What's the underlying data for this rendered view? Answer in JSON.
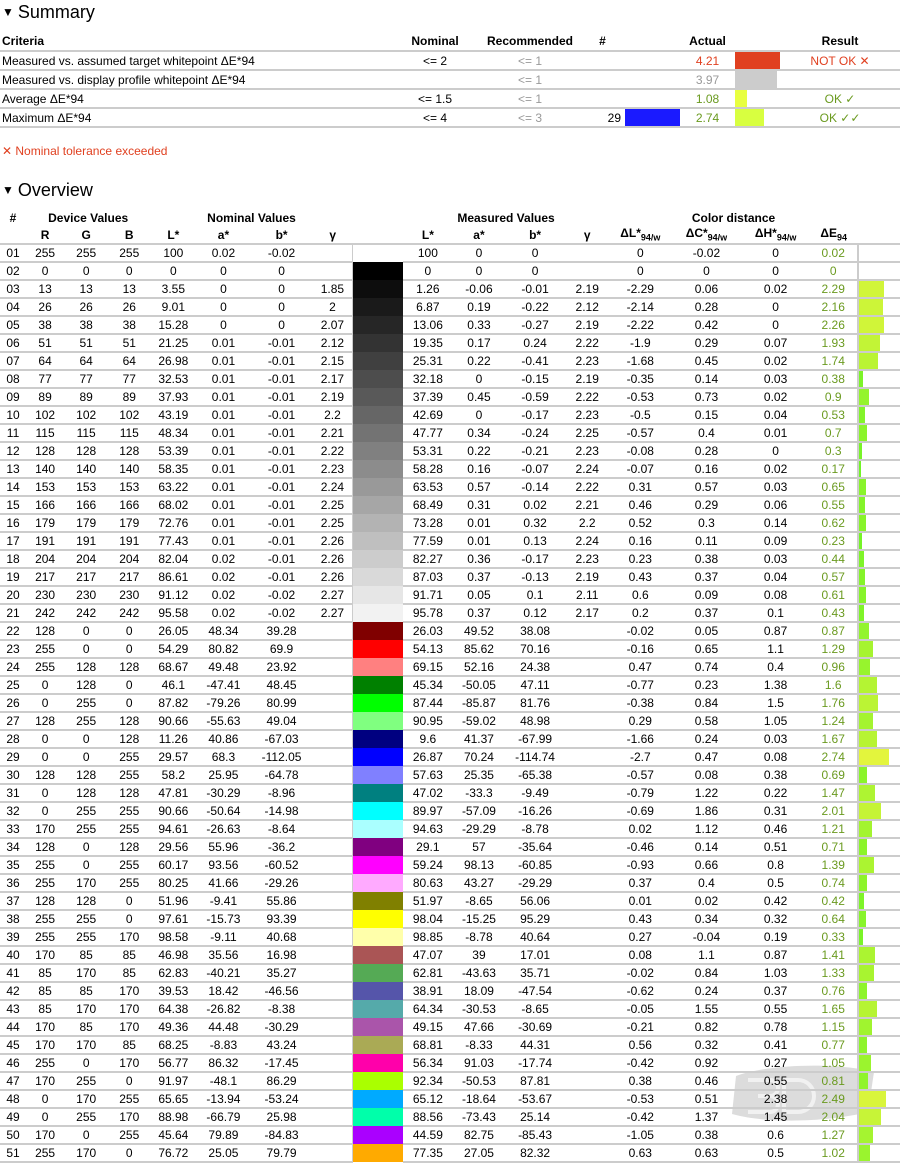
{
  "summary": {
    "title": "Summary",
    "headers": {
      "criteria": "Criteria",
      "nominal": "Nominal",
      "recommended": "Recommended",
      "num": "#",
      "actual": "Actual",
      "result": "Result"
    },
    "rows": [
      {
        "criteria": "Measured vs. assumed target whitepoint ΔE*94",
        "nominal": "<= 2",
        "recommended": "<= 1",
        "num": "",
        "num_color": "",
        "actual": "4.21",
        "actual_class": "red",
        "actual_color": "#e04020",
        "result": "NOT OK ✕",
        "result_class": "red"
      },
      {
        "criteria": "Measured vs. display profile whitepoint ΔE*94",
        "nominal": "",
        "recommended": "<= 1",
        "num": "",
        "num_color": "",
        "actual": "3.97",
        "actual_class": "gray",
        "actual_color": "#cccccc",
        "result": "",
        "result_class": ""
      },
      {
        "criteria": "Average ΔE*94",
        "nominal": "<= 1.5",
        "recommended": "<= 1",
        "num": "",
        "num_color": "",
        "actual": "1.08",
        "actual_class": "green",
        "actual_color": "#e8ff40",
        "result": "OK ✓",
        "result_class": "green"
      },
      {
        "criteria": "Maximum ΔE*94",
        "nominal": "<= 4",
        "recommended": "<= 3",
        "num": "29",
        "num_color": "#1a1aff",
        "actual": "2.74",
        "actual_class": "green",
        "actual_color": "#d8ff40",
        "result": "OK ✓✓",
        "result_class": "green"
      }
    ],
    "note": "✕ Nominal tolerance exceeded"
  },
  "overview": {
    "title": "Overview",
    "groups": {
      "num": "#",
      "device": "Device Values",
      "nominal": "Nominal Values",
      "measured": "Measured Values",
      "distance": "Color distance"
    },
    "columns": {
      "r": "R",
      "g": "G",
      "b": "B",
      "l": "L*",
      "a": "a*",
      "bb": "b*",
      "gamma": "γ",
      "dl": "ΔL*",
      "dc": "ΔC*",
      "dh": "ΔH*",
      "de": "ΔE",
      "sub_w": "94/w",
      "sub": "94"
    },
    "rows": [
      [
        "01",
        255,
        255,
        255,
        "100",
        "0.02",
        "-0.02",
        "",
        "100",
        "0",
        "0",
        "",
        "0",
        "-0.02",
        "0",
        "0.02"
      ],
      [
        "02",
        0,
        0,
        0,
        "0",
        "0",
        "0",
        "",
        "0",
        "0",
        "0",
        "",
        "0",
        "0",
        "0",
        "0"
      ],
      [
        "03",
        13,
        13,
        13,
        "3.55",
        "0",
        "0",
        "1.85",
        "1.26",
        "-0.06",
        "-0.01",
        "2.19",
        "-2.29",
        "0.06",
        "0.02",
        "2.29"
      ],
      [
        "04",
        26,
        26,
        26,
        "9.01",
        "0",
        "0",
        "2",
        "6.87",
        "0.19",
        "-0.22",
        "2.12",
        "-2.14",
        "0.28",
        "0",
        "2.16"
      ],
      [
        "05",
        38,
        38,
        38,
        "15.28",
        "0",
        "0",
        "2.07",
        "13.06",
        "0.33",
        "-0.27",
        "2.19",
        "-2.22",
        "0.42",
        "0",
        "2.26"
      ],
      [
        "06",
        51,
        51,
        51,
        "21.25",
        "0.01",
        "-0.01",
        "2.12",
        "19.35",
        "0.17",
        "0.24",
        "2.22",
        "-1.9",
        "0.29",
        "0.07",
        "1.93"
      ],
      [
        "07",
        64,
        64,
        64,
        "26.98",
        "0.01",
        "-0.01",
        "2.15",
        "25.31",
        "0.22",
        "-0.41",
        "2.23",
        "-1.68",
        "0.45",
        "0.02",
        "1.74"
      ],
      [
        "08",
        77,
        77,
        77,
        "32.53",
        "0.01",
        "-0.01",
        "2.17",
        "32.18",
        "0",
        "-0.15",
        "2.19",
        "-0.35",
        "0.14",
        "0.03",
        "0.38"
      ],
      [
        "09",
        89,
        89,
        89,
        "37.93",
        "0.01",
        "-0.01",
        "2.19",
        "37.39",
        "0.45",
        "-0.59",
        "2.22",
        "-0.53",
        "0.73",
        "0.02",
        "0.9"
      ],
      [
        "10",
        102,
        102,
        102,
        "43.19",
        "0.01",
        "-0.01",
        "2.2",
        "42.69",
        "0",
        "-0.17",
        "2.23",
        "-0.5",
        "0.15",
        "0.04",
        "0.53"
      ],
      [
        "11",
        115,
        115,
        115,
        "48.34",
        "0.01",
        "-0.01",
        "2.21",
        "47.77",
        "0.34",
        "-0.24",
        "2.25",
        "-0.57",
        "0.4",
        "0.01",
        "0.7"
      ],
      [
        "12",
        128,
        128,
        128,
        "53.39",
        "0.01",
        "-0.01",
        "2.22",
        "53.31",
        "0.22",
        "-0.21",
        "2.23",
        "-0.08",
        "0.28",
        "0",
        "0.3"
      ],
      [
        "13",
        140,
        140,
        140,
        "58.35",
        "0.01",
        "-0.01",
        "2.23",
        "58.28",
        "0.16",
        "-0.07",
        "2.24",
        "-0.07",
        "0.16",
        "0.02",
        "0.17"
      ],
      [
        "14",
        153,
        153,
        153,
        "63.22",
        "0.01",
        "-0.01",
        "2.24",
        "63.53",
        "0.57",
        "-0.14",
        "2.22",
        "0.31",
        "0.57",
        "0.03",
        "0.65"
      ],
      [
        "15",
        166,
        166,
        166,
        "68.02",
        "0.01",
        "-0.01",
        "2.25",
        "68.49",
        "0.31",
        "0.02",
        "2.21",
        "0.46",
        "0.29",
        "0.06",
        "0.55"
      ],
      [
        "16",
        179,
        179,
        179,
        "72.76",
        "0.01",
        "-0.01",
        "2.25",
        "73.28",
        "0.01",
        "0.32",
        "2.2",
        "0.52",
        "0.3",
        "0.14",
        "0.62"
      ],
      [
        "17",
        191,
        191,
        191,
        "77.43",
        "0.01",
        "-0.01",
        "2.26",
        "77.59",
        "0.01",
        "0.13",
        "2.24",
        "0.16",
        "0.11",
        "0.09",
        "0.23"
      ],
      [
        "18",
        204,
        204,
        204,
        "82.04",
        "0.02",
        "-0.01",
        "2.26",
        "82.27",
        "0.36",
        "-0.17",
        "2.23",
        "0.23",
        "0.38",
        "0.03",
        "0.44"
      ],
      [
        "19",
        217,
        217,
        217,
        "86.61",
        "0.02",
        "-0.01",
        "2.26",
        "87.03",
        "0.37",
        "-0.13",
        "2.19",
        "0.43",
        "0.37",
        "0.04",
        "0.57"
      ],
      [
        "20",
        230,
        230,
        230,
        "91.12",
        "0.02",
        "-0.02",
        "2.27",
        "91.71",
        "0.05",
        "0.1",
        "2.11",
        "0.6",
        "0.09",
        "0.08",
        "0.61"
      ],
      [
        "21",
        242,
        242,
        242,
        "95.58",
        "0.02",
        "-0.02",
        "2.27",
        "95.78",
        "0.37",
        "0.12",
        "2.17",
        "0.2",
        "0.37",
        "0.1",
        "0.43"
      ],
      [
        "22",
        128,
        0,
        0,
        "26.05",
        "48.34",
        "39.28",
        "",
        "26.03",
        "49.52",
        "38.08",
        "",
        "-0.02",
        "0.05",
        "0.87",
        "0.87"
      ],
      [
        "23",
        255,
        0,
        0,
        "54.29",
        "80.82",
        "69.9",
        "",
        "54.13",
        "85.62",
        "70.16",
        "",
        "-0.16",
        "0.65",
        "1.1",
        "1.29"
      ],
      [
        "24",
        255,
        128,
        128,
        "68.67",
        "49.48",
        "23.92",
        "",
        "69.15",
        "52.16",
        "24.38",
        "",
        "0.47",
        "0.74",
        "0.4",
        "0.96"
      ],
      [
        "25",
        0,
        128,
        0,
        "46.1",
        "-47.41",
        "48.45",
        "",
        "45.34",
        "-50.05",
        "47.11",
        "",
        "-0.77",
        "0.23",
        "1.38",
        "1.6"
      ],
      [
        "26",
        0,
        255,
        0,
        "87.82",
        "-79.26",
        "80.99",
        "",
        "87.44",
        "-85.87",
        "81.76",
        "",
        "-0.38",
        "0.84",
        "1.5",
        "1.76"
      ],
      [
        "27",
        128,
        255,
        128,
        "90.66",
        "-55.63",
        "49.04",
        "",
        "90.95",
        "-59.02",
        "48.98",
        "",
        "0.29",
        "0.58",
        "1.05",
        "1.24"
      ],
      [
        "28",
        0,
        0,
        128,
        "11.26",
        "40.86",
        "-67.03",
        "",
        "9.6",
        "41.37",
        "-67.99",
        "",
        "-1.66",
        "0.24",
        "0.03",
        "1.67"
      ],
      [
        "29",
        0,
        0,
        255,
        "29.57",
        "68.3",
        "-112.05",
        "",
        "26.87",
        "70.24",
        "-114.74",
        "",
        "-2.7",
        "0.47",
        "0.08",
        "2.74"
      ],
      [
        "30",
        128,
        128,
        255,
        "58.2",
        "25.95",
        "-64.78",
        "",
        "57.63",
        "25.35",
        "-65.38",
        "",
        "-0.57",
        "0.08",
        "0.38",
        "0.69"
      ],
      [
        "31",
        0,
        128,
        128,
        "47.81",
        "-30.29",
        "-8.96",
        "",
        "47.02",
        "-33.3",
        "-9.49",
        "",
        "-0.79",
        "1.22",
        "0.22",
        "1.47"
      ],
      [
        "32",
        0,
        255,
        255,
        "90.66",
        "-50.64",
        "-14.98",
        "",
        "89.97",
        "-57.09",
        "-16.26",
        "",
        "-0.69",
        "1.86",
        "0.31",
        "2.01"
      ],
      [
        "33",
        170,
        255,
        255,
        "94.61",
        "-26.63",
        "-8.64",
        "",
        "94.63",
        "-29.29",
        "-8.78",
        "",
        "0.02",
        "1.12",
        "0.46",
        "1.21"
      ],
      [
        "34",
        128,
        0,
        128,
        "29.56",
        "55.96",
        "-36.2",
        "",
        "29.1",
        "57",
        "-35.64",
        "",
        "-0.46",
        "0.14",
        "0.51",
        "0.71"
      ],
      [
        "35",
        255,
        0,
        255,
        "60.17",
        "93.56",
        "-60.52",
        "",
        "59.24",
        "98.13",
        "-60.85",
        "",
        "-0.93",
        "0.66",
        "0.8",
        "1.39"
      ],
      [
        "36",
        255,
        170,
        255,
        "80.25",
        "41.66",
        "-29.26",
        "",
        "80.63",
        "43.27",
        "-29.29",
        "",
        "0.37",
        "0.4",
        "0.5",
        "0.74"
      ],
      [
        "37",
        128,
        128,
        0,
        "51.96",
        "-9.41",
        "55.86",
        "",
        "51.97",
        "-8.65",
        "56.06",
        "",
        "0.01",
        "0.02",
        "0.42",
        "0.42"
      ],
      [
        "38",
        255,
        255,
        0,
        "97.61",
        "-15.73",
        "93.39",
        "",
        "98.04",
        "-15.25",
        "95.29",
        "",
        "0.43",
        "0.34",
        "0.32",
        "0.64"
      ],
      [
        "39",
        255,
        255,
        170,
        "98.58",
        "-9.11",
        "40.68",
        "",
        "98.85",
        "-8.78",
        "40.64",
        "",
        "0.27",
        "-0.04",
        "0.19",
        "0.33"
      ],
      [
        "40",
        170,
        85,
        85,
        "46.98",
        "35.56",
        "16.98",
        "",
        "47.07",
        "39",
        "17.01",
        "",
        "0.08",
        "1.1",
        "0.87",
        "1.41"
      ],
      [
        "41",
        85,
        170,
        85,
        "62.83",
        "-40.21",
        "35.27",
        "",
        "62.81",
        "-43.63",
        "35.71",
        "",
        "-0.02",
        "0.84",
        "1.03",
        "1.33"
      ],
      [
        "42",
        85,
        85,
        170,
        "39.53",
        "18.42",
        "-46.56",
        "",
        "38.91",
        "18.09",
        "-47.54",
        "",
        "-0.62",
        "0.24",
        "0.37",
        "0.76"
      ],
      [
        "43",
        85,
        170,
        170,
        "64.38",
        "-26.82",
        "-8.38",
        "",
        "64.34",
        "-30.53",
        "-8.65",
        "",
        "-0.05",
        "1.55",
        "0.55",
        "1.65"
      ],
      [
        "44",
        170,
        85,
        170,
        "49.36",
        "44.48",
        "-30.29",
        "",
        "49.15",
        "47.66",
        "-30.69",
        "",
        "-0.21",
        "0.82",
        "0.78",
        "1.15"
      ],
      [
        "45",
        170,
        170,
        85,
        "68.25",
        "-8.83",
        "43.24",
        "",
        "68.81",
        "-8.33",
        "44.31",
        "",
        "0.56",
        "0.32",
        "0.41",
        "0.77"
      ],
      [
        "46",
        255,
        0,
        170,
        "56.77",
        "86.32",
        "-17.45",
        "",
        "56.34",
        "91.03",
        "-17.74",
        "",
        "-0.42",
        "0.92",
        "0.27",
        "1.05"
      ],
      [
        "47",
        170,
        255,
        0,
        "91.97",
        "-48.1",
        "86.29",
        "",
        "92.34",
        "-50.53",
        "87.81",
        "",
        "0.38",
        "0.46",
        "0.55",
        "0.81"
      ],
      [
        "48",
        0,
        170,
        255,
        "65.65",
        "-13.94",
        "-53.24",
        "",
        "65.12",
        "-18.64",
        "-53.67",
        "",
        "-0.53",
        "0.51",
        "2.38",
        "2.49"
      ],
      [
        "49",
        0,
        255,
        170,
        "88.98",
        "-66.79",
        "25.98",
        "",
        "88.56",
        "-73.43",
        "25.14",
        "",
        "-0.42",
        "1.37",
        "1.45",
        "2.04"
      ],
      [
        "50",
        170,
        0,
        255,
        "45.64",
        "79.89",
        "-84.83",
        "",
        "44.59",
        "82.75",
        "-85.43",
        "",
        "-1.05",
        "0.38",
        "0.6",
        "1.27"
      ],
      [
        "51",
        255,
        170,
        0,
        "76.72",
        "25.05",
        "79.79",
        "",
        "77.35",
        "27.05",
        "82.32",
        "",
        "0.63",
        "0.63",
        "0.5",
        "1.02"
      ]
    ]
  },
  "watermark": {
    "logo": "3DNEWS",
    "tagline": "Daily Digital Digest"
  }
}
